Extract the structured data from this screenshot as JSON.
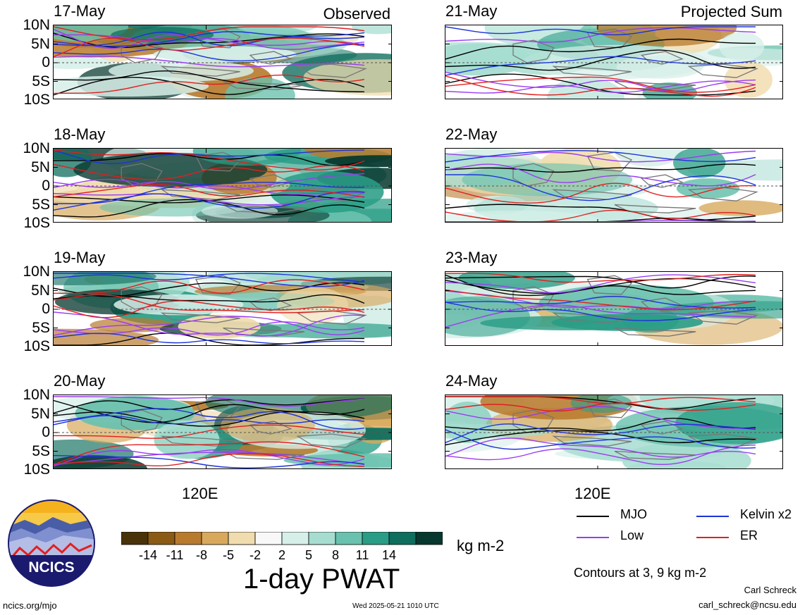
{
  "header": {
    "left_title": "Observed",
    "right_title": "Projected Sum"
  },
  "panels": {
    "observed": [
      "17-May",
      "18-May",
      "19-May",
      "20-May"
    ],
    "projected": [
      "21-May",
      "22-May",
      "23-May",
      "24-May"
    ]
  },
  "lat_ticks": [
    "10N",
    "5N",
    "0",
    "5S",
    "10S"
  ],
  "lon_tick": "120E",
  "colorbar": {
    "title": "1-day PWAT",
    "units": "kg m-2",
    "tick_labels": [
      "-14",
      "-11",
      "-8",
      "-5",
      "-2",
      "2",
      "5",
      "8",
      "11",
      "14"
    ],
    "colors": [
      "#4a3208",
      "#8b5a14",
      "#b87b2e",
      "#d8a95c",
      "#f0dcae",
      "#f8f8f8",
      "#d7efe9",
      "#a6ddd0",
      "#69c1ae",
      "#2a9d86",
      "#0f6e5e",
      "#07382f"
    ]
  },
  "legend": {
    "items": [
      {
        "label": "MJO",
        "color": "#000000"
      },
      {
        "label": "Kelvin x2",
        "color": "#1d33d9"
      },
      {
        "label": "Low",
        "color": "#9a3cf0"
      },
      {
        "label": "ER",
        "color": "#e01f1f"
      }
    ],
    "note": "Contours at 3, 9 kg m-2"
  },
  "logo": {
    "text": "NCICS"
  },
  "footer": {
    "left": "ncics.org/mjo",
    "center": "Wed 2025-05-21 1010 UTC",
    "author": "Carl Schreck",
    "email": "carl_schreck@ncsu.edu"
  }
}
